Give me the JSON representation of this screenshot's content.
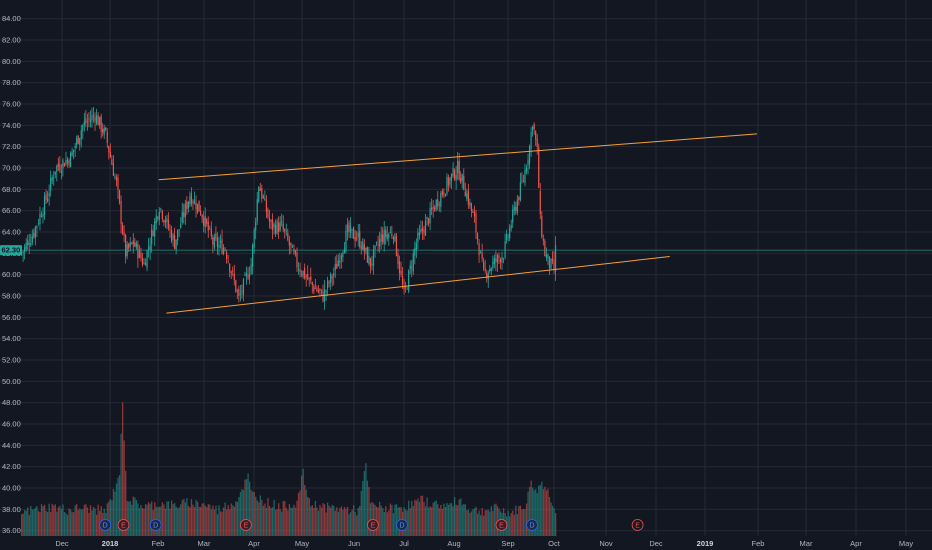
{
  "chart_data": {
    "type": "candlestick",
    "y_axis": {
      "labels": [
        "36.00",
        "38.00",
        "40.00",
        "42.00",
        "44.00",
        "46.00",
        "48.00",
        "50.00",
        "52.00",
        "54.00",
        "56.00",
        "58.00",
        "60.00",
        "62.00",
        "64.00",
        "66.00",
        "68.00",
        "70.00",
        "72.00",
        "74.00",
        "76.00",
        "78.00",
        "80.00",
        "82.00",
        "84.00"
      ],
      "range": [
        35.5,
        85
      ],
      "position": "left"
    },
    "x_axis": {
      "labels": [
        "Dec",
        "2018",
        "Feb",
        "Mar",
        "Apr",
        "May",
        "Jun",
        "Jul",
        "Aug",
        "Sep",
        "Oct",
        "Nov",
        "Dec",
        "2019",
        "Feb",
        "Mar",
        "Apr",
        "May"
      ],
      "major": [
        "2018",
        "2019"
      ]
    },
    "last_price": "62.30",
    "grid": true,
    "colors": {
      "background": "#131722",
      "up": "#26a69a",
      "down": "#ef5350",
      "trendline": "#f7a035",
      "last_price_line": "#26a69a"
    },
    "price_path": [
      [
        0,
        62
      ],
      [
        8,
        64
      ],
      [
        17,
        67.5
      ],
      [
        22,
        70
      ],
      [
        32,
        71
      ],
      [
        40,
        74
      ],
      [
        48,
        75
      ],
      [
        55,
        73
      ],
      [
        62,
        68.5
      ],
      [
        68,
        62
      ],
      [
        73,
        63
      ],
      [
        80,
        61
      ],
      [
        90,
        66.5
      ],
      [
        100,
        63
      ],
      [
        110,
        67.5
      ],
      [
        117,
        66
      ],
      [
        125,
        63
      ],
      [
        133,
        62.5
      ],
      [
        142,
        57.7
      ],
      [
        150,
        61
      ],
      [
        155,
        68.5
      ],
      [
        163,
        64.5
      ],
      [
        170,
        64.5
      ],
      [
        180,
        61
      ],
      [
        190,
        59
      ],
      [
        197,
        58
      ],
      [
        205,
        60.5
      ],
      [
        213,
        64
      ],
      [
        220,
        63.5
      ],
      [
        228,
        61
      ],
      [
        235,
        63.5
      ],
      [
        243,
        64
      ],
      [
        250,
        58
      ],
      [
        258,
        63
      ],
      [
        265,
        65
      ],
      [
        272,
        67
      ],
      [
        278,
        68.5
      ],
      [
        285,
        70
      ],
      [
        290,
        68
      ],
      [
        296,
        65
      ],
      [
        302,
        60
      ],
      [
        308,
        61
      ],
      [
        315,
        62
      ],
      [
        322,
        66
      ],
      [
        328,
        69
      ],
      [
        332,
        72
      ],
      [
        334,
        74.5
      ],
      [
        337,
        71.5
      ],
      [
        339,
        65
      ],
      [
        342,
        62
      ],
      [
        345,
        61
      ],
      [
        348,
        60.5
      ],
      [
        349,
        62.3
      ]
    ],
    "volume_path": [
      [
        0,
        37.6
      ],
      [
        10,
        38
      ],
      [
        20,
        38.2
      ],
      [
        30,
        37.9
      ],
      [
        40,
        38.1
      ],
      [
        55,
        37.8
      ],
      [
        60,
        39.5
      ],
      [
        64,
        41.5
      ],
      [
        66,
        47.7
      ],
      [
        69,
        39
      ],
      [
        80,
        38.2
      ],
      [
        90,
        38.5
      ],
      [
        100,
        38.3
      ],
      [
        110,
        38.6
      ],
      [
        120,
        38.4
      ],
      [
        128,
        37.9
      ],
      [
        140,
        38.7
      ],
      [
        148,
        41
      ],
      [
        150,
        39.5
      ],
      [
        160,
        38.6
      ],
      [
        170,
        38.2
      ],
      [
        180,
        38.6
      ],
      [
        184,
        41.3
      ],
      [
        188,
        38.5
      ],
      [
        200,
        38.1
      ],
      [
        210,
        38
      ],
      [
        220,
        37.8
      ],
      [
        225,
        42
      ],
      [
        228,
        38.4
      ],
      [
        240,
        38
      ],
      [
        250,
        38.2
      ],
      [
        262,
        38.8
      ],
      [
        270,
        38.4
      ],
      [
        280,
        38.3
      ],
      [
        286,
        38.9
      ],
      [
        292,
        38
      ],
      [
        300,
        37.8
      ],
      [
        310,
        38
      ],
      [
        320,
        37.6
      ],
      [
        330,
        38.4
      ],
      [
        333,
        40.8
      ],
      [
        336,
        39.5
      ],
      [
        340,
        40.5
      ],
      [
        344,
        39.6
      ],
      [
        349,
        38
      ]
    ],
    "trendlines": [
      {
        "p1": {
          "bar": 90,
          "price": 68.9
        },
        "p2": {
          "bar": 481,
          "price": 73.2
        }
      },
      {
        "p1": {
          "bar": 95,
          "price": 56.4
        },
        "p2": {
          "bar": 424,
          "price": 61.7
        }
      }
    ],
    "events": [
      {
        "label": "D",
        "bar": 55
      },
      {
        "label": "E",
        "bar": 67
      },
      {
        "label": "D",
        "bar": 88
      },
      {
        "label": "E",
        "bar": 147
      },
      {
        "label": "E",
        "bar": 230
      },
      {
        "label": "D",
        "bar": 249
      },
      {
        "label": "E",
        "bar": 314
      },
      {
        "label": "D",
        "bar": 334
      },
      {
        "label": "E",
        "bar": 403
      }
    ]
  }
}
